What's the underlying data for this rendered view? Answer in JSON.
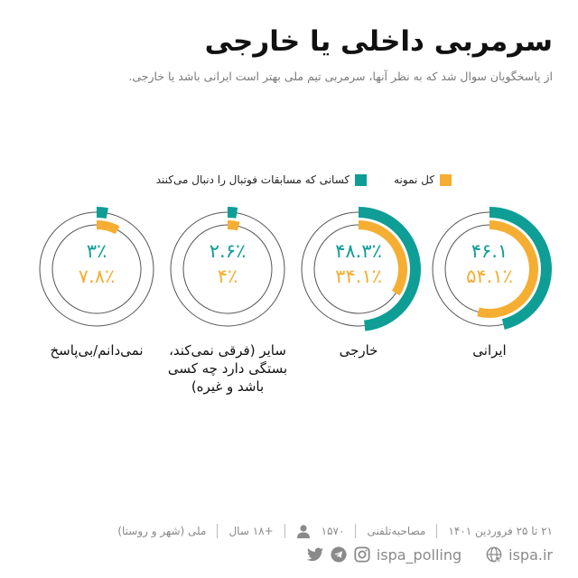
{
  "header": {
    "title": "سرمربی داخلی یا خارجی",
    "subtitle": "از پاسخگویان سوال شد که به نظر آنها، سرمربی تیم ملی بهتر است ایرانی باشد یا خارجی."
  },
  "legend": {
    "items": [
      {
        "label": "کل نمونه",
        "color": "#f5ae32"
      },
      {
        "label": "کسانی که مسابقات فوتبال را دنبال می‌کنند",
        "color": "#0e9e96"
      }
    ]
  },
  "rings": [
    {
      "label": "ایرانی",
      "teal_text": "۴۶.۱",
      "orange_text": "۵۴.۱٪",
      "teal_value": 46.1,
      "orange_value": 54.1
    },
    {
      "label": "خارجی",
      "teal_text": "۴۸.۳٪",
      "orange_text": "۳۴.۱٪",
      "teal_value": 48.3,
      "orange_value": 34.1
    },
    {
      "label": "سایر (فرقی نمی‌کند، بستگی دارد چه کسی باشد و غیره)",
      "teal_text": "۲.۶٪",
      "orange_text": "۴٪",
      "teal_value": 2.6,
      "orange_value": 4
    },
    {
      "label": "نمی‌دانم/بی‌پاسخ",
      "teal_text": "۳٪",
      "orange_text": "۷.۸٪",
      "teal_value": 3,
      "orange_value": 7.8
    }
  ],
  "footer": {
    "date": "۲۱ تا ۲۵ فروردین ۱۴۰۱",
    "method": "مصاحبه‌تلفنی",
    "sample": "۱۵۷۰",
    "age": "+۱۸ سال",
    "scope": "ملی (شهر و روستا)",
    "social_handle": "ispa_polling",
    "website": "ispa.ir"
  },
  "colors": {
    "teal": "#0e9e96",
    "orange": "#f5ae32",
    "ring_line": "#555555"
  },
  "chart_data": {
    "type": "donut",
    "title": "سرمربی داخلی یا خارجی",
    "subtitle": "از پاسخگویان سوال شد که به نظر آنها، سرمربی تیم ملی بهتر است ایرانی باشد یا خارجی.",
    "categories": [
      "ایرانی",
      "خارجی",
      "سایر (فرقی نمی‌کند، بستگی دارد چه کسی باشد و غیره)",
      "نمی‌دانم/بی‌پاسخ"
    ],
    "series": [
      {
        "name": "کسانی که مسابقات فوتبال را دنبال می‌کنند",
        "color": "#0e9e96",
        "values": [
          46.1,
          48.3,
          2.6,
          3
        ]
      },
      {
        "name": "کل نمونه",
        "color": "#f5ae32",
        "values": [
          54.1,
          34.1,
          4,
          7.8
        ]
      }
    ],
    "unit": "%",
    "legend_position": "top"
  }
}
